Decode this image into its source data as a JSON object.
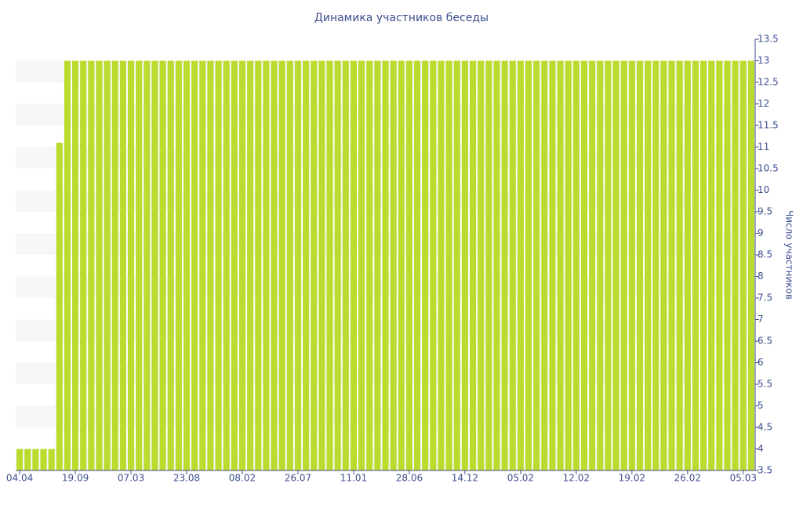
{
  "chart_data": {
    "type": "bar",
    "title": "Динамика участников беседы",
    "y_label": "Число участников",
    "categories": [
      "04.04",
      null,
      null,
      null,
      null,
      null,
      null,
      "19.09",
      null,
      null,
      null,
      null,
      null,
      null,
      "07.03",
      null,
      null,
      null,
      null,
      null,
      null,
      "23.08",
      null,
      null,
      null,
      null,
      null,
      null,
      "08.02",
      null,
      null,
      null,
      null,
      null,
      null,
      "26.07",
      null,
      null,
      null,
      null,
      null,
      null,
      "11.01",
      null,
      null,
      null,
      null,
      null,
      null,
      "28.06",
      null,
      null,
      null,
      null,
      null,
      null,
      "14.12",
      null,
      null,
      null,
      null,
      null,
      null,
      "05.02",
      null,
      null,
      null,
      null,
      null,
      null,
      "12.02",
      null,
      null,
      null,
      null,
      null,
      null,
      "19.02",
      null,
      null,
      null,
      null,
      null,
      null,
      "26.02",
      null,
      null,
      null,
      null,
      null,
      null,
      "05.03",
      null
    ],
    "values": [
      4,
      4,
      4,
      4,
      4,
      11.1,
      13,
      13,
      13,
      13,
      13,
      13,
      13,
      13,
      13,
      13,
      13,
      13,
      13,
      13,
      13,
      13,
      13,
      13,
      13,
      13,
      13,
      13,
      13,
      13,
      13,
      13,
      13,
      13,
      13,
      13,
      13,
      13,
      13,
      13,
      13,
      13,
      13,
      13,
      13,
      13,
      13,
      13,
      13,
      13,
      13,
      13,
      13,
      13,
      13,
      13,
      13,
      13,
      13,
      13,
      13,
      13,
      13,
      13,
      13,
      13,
      13,
      13,
      13,
      13,
      13,
      13,
      13,
      13,
      13,
      13,
      13,
      13,
      13,
      13,
      13,
      13,
      13,
      13,
      13,
      13,
      13,
      13,
      13,
      13,
      13,
      13,
      13
    ],
    "color": "#b9dc2e",
    "ylim": [
      3.5,
      13.5
    ],
    "yticks": [
      3.5,
      4,
      4.5,
      5,
      5.5,
      6,
      6.5,
      7,
      7.5,
      8,
      8.5,
      9,
      9.5,
      10,
      10.5,
      11,
      11.5,
      12,
      12.5,
      13,
      13.5
    ],
    "y_axis_side": "right",
    "grid": true
  }
}
